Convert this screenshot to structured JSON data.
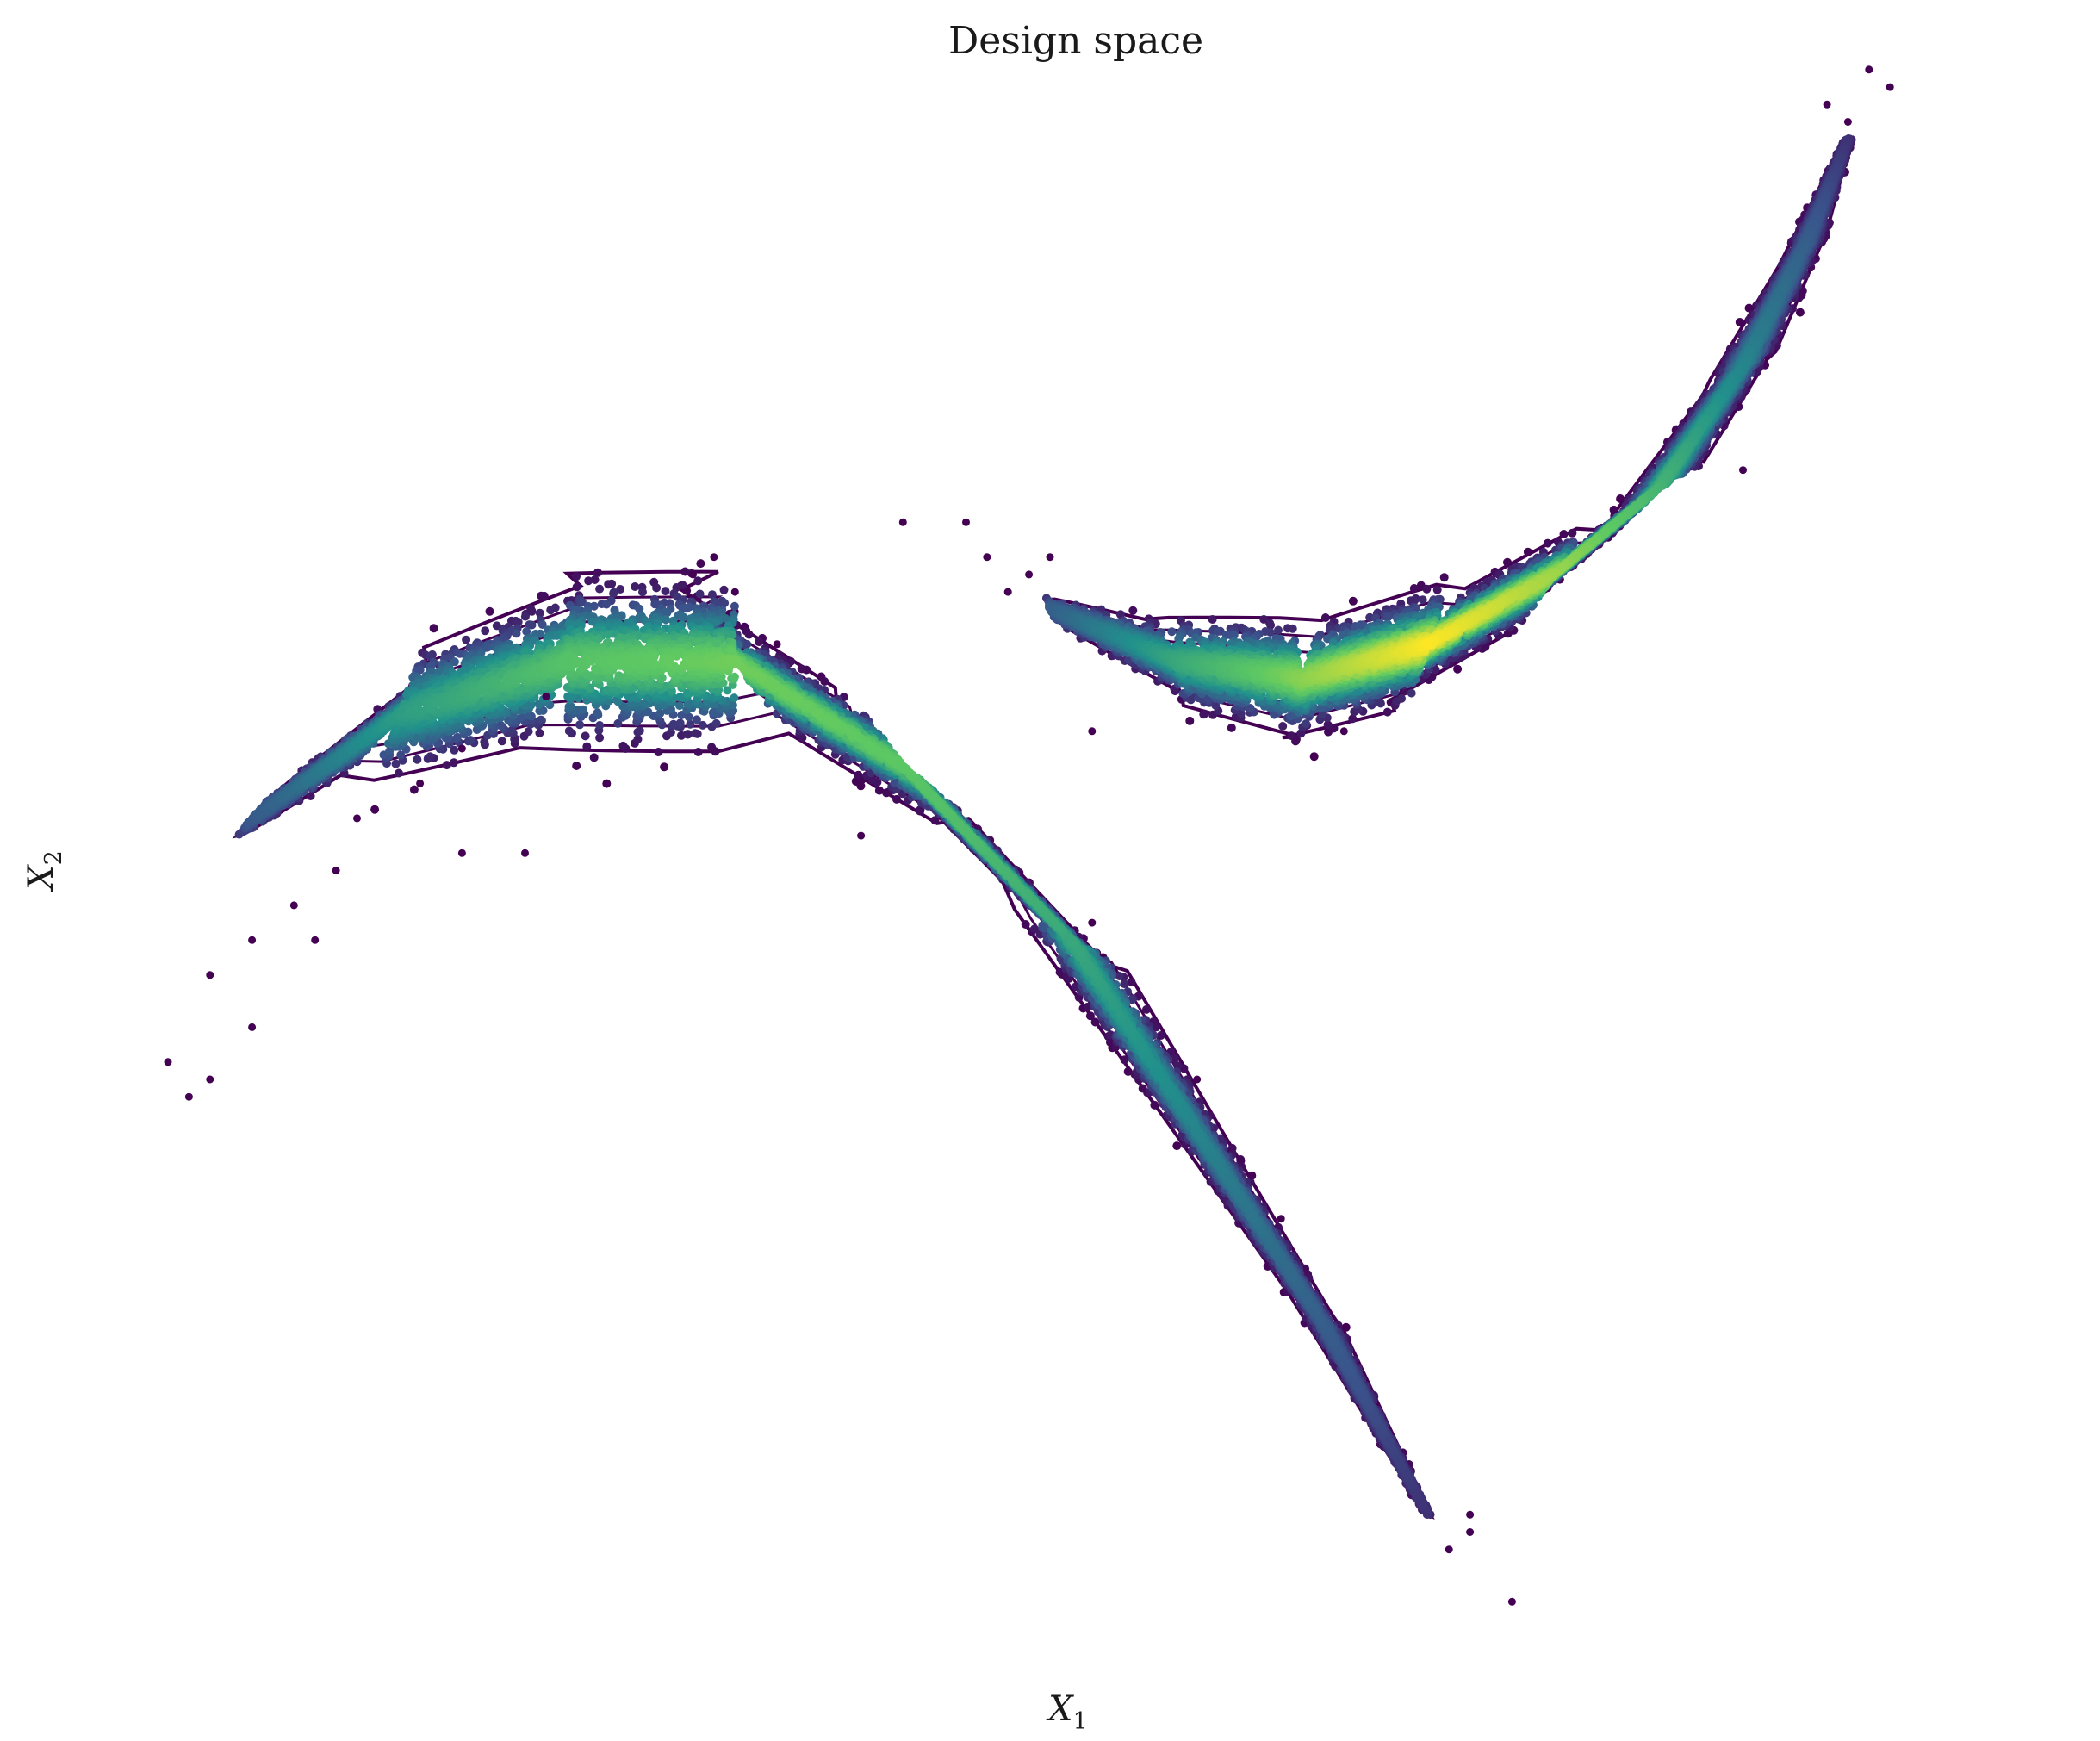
{
  "chart_data": {
    "type": "scatter",
    "title": "Design space",
    "xlabel": {
      "main": "X",
      "sub": "1"
    },
    "ylabel": {
      "main": "X",
      "sub": "2"
    },
    "axes_visible": false,
    "grid": false,
    "colormap": "viridis",
    "colors": {
      "outlier": "#440154",
      "contour": "#440154",
      "mid": "#21918c",
      "high": "#35b779",
      "peak": "#fde725"
    },
    "point_rendering": "density-colored points with density contour lines",
    "xlim": [
      0,
      1
    ],
    "ylim": [
      0,
      1
    ],
    "clusters": [
      {
        "name": "lower-left arc",
        "ridge": [
          [
            0.12,
            0.53
          ],
          [
            0.19,
            0.59
          ],
          [
            0.27,
            0.62
          ],
          [
            0.35,
            0.62
          ],
          [
            0.43,
            0.56
          ],
          [
            0.51,
            0.46
          ],
          [
            0.57,
            0.35
          ],
          [
            0.63,
            0.24
          ],
          [
            0.68,
            0.13
          ]
        ],
        "halfwidth": [
          0.025,
          0.035,
          0.037,
          0.035,
          0.032,
          0.025,
          0.018,
          0.012,
          0.004
        ],
        "peak_density": [
          0.28,
          0.55,
          0.72,
          0.78,
          0.74,
          0.6,
          0.45,
          0.3,
          0.15
        ]
      },
      {
        "name": "upper-right arc",
        "ridge": [
          [
            0.5,
            0.65
          ],
          [
            0.56,
            0.62
          ],
          [
            0.62,
            0.61
          ],
          [
            0.68,
            0.63
          ],
          [
            0.74,
            0.67
          ],
          [
            0.79,
            0.72
          ],
          [
            0.83,
            0.79
          ],
          [
            0.86,
            0.86
          ],
          [
            0.88,
            0.92
          ]
        ],
        "halfwidth": [
          0.012,
          0.022,
          0.026,
          0.026,
          0.024,
          0.02,
          0.015,
          0.01,
          0.004
        ],
        "peak_density": [
          0.3,
          0.6,
          0.82,
          1.0,
          0.85,
          0.65,
          0.45,
          0.3,
          0.15
        ]
      }
    ],
    "outliers": [
      [
        0.08,
        0.39
      ],
      [
        0.09,
        0.37
      ],
      [
        0.1,
        0.38
      ],
      [
        0.1,
        0.44
      ],
      [
        0.12,
        0.46
      ],
      [
        0.12,
        0.41
      ],
      [
        0.15,
        0.46
      ],
      [
        0.14,
        0.48
      ],
      [
        0.16,
        0.5
      ],
      [
        0.17,
        0.53
      ],
      [
        0.2,
        0.55
      ],
      [
        0.22,
        0.57
      ],
      [
        0.33,
        0.67
      ],
      [
        0.34,
        0.68
      ],
      [
        0.35,
        0.66
      ],
      [
        0.43,
        0.7
      ],
      [
        0.46,
        0.7
      ],
      [
        0.47,
        0.68
      ],
      [
        0.49,
        0.67
      ],
      [
        0.5,
        0.68
      ],
      [
        0.48,
        0.66
      ],
      [
        0.7,
        0.13
      ],
      [
        0.7,
        0.12
      ],
      [
        0.69,
        0.11
      ],
      [
        0.72,
        0.08
      ],
      [
        0.89,
        0.96
      ],
      [
        0.9,
        0.95
      ],
      [
        0.87,
        0.94
      ],
      [
        0.88,
        0.93
      ],
      [
        0.57,
        0.38
      ],
      [
        0.61,
        0.3
      ],
      [
        0.41,
        0.52
      ],
      [
        0.22,
        0.51
      ],
      [
        0.25,
        0.51
      ],
      [
        0.37,
        0.63
      ],
      [
        0.52,
        0.58
      ],
      [
        0.64,
        0.58
      ],
      [
        0.83,
        0.73
      ],
      [
        0.52,
        0.47
      ],
      [
        0.26,
        0.6
      ]
    ]
  }
}
